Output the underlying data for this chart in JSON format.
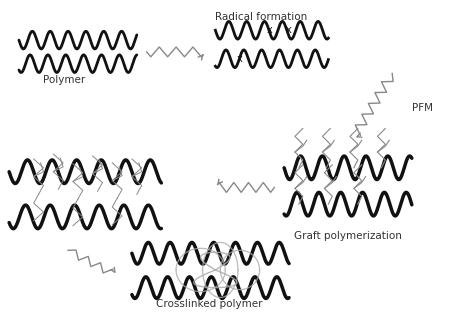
{
  "bg_color": "#ffffff",
  "text_color": "#333333",
  "polymer_color": "#111111",
  "graft_color": "#888888",
  "arrow_color": "#888888",
  "link_color": "#aaaaaa",
  "labels": {
    "polymer": "Polymer",
    "radical": "Radical formation",
    "pfm": "PFM",
    "graft": "Graft polymerization",
    "crosslinked": "Crosslinked polymer"
  },
  "label_fontsize": 7.5,
  "figsize": [
    4.74,
    3.13
  ],
  "dpi": 100
}
